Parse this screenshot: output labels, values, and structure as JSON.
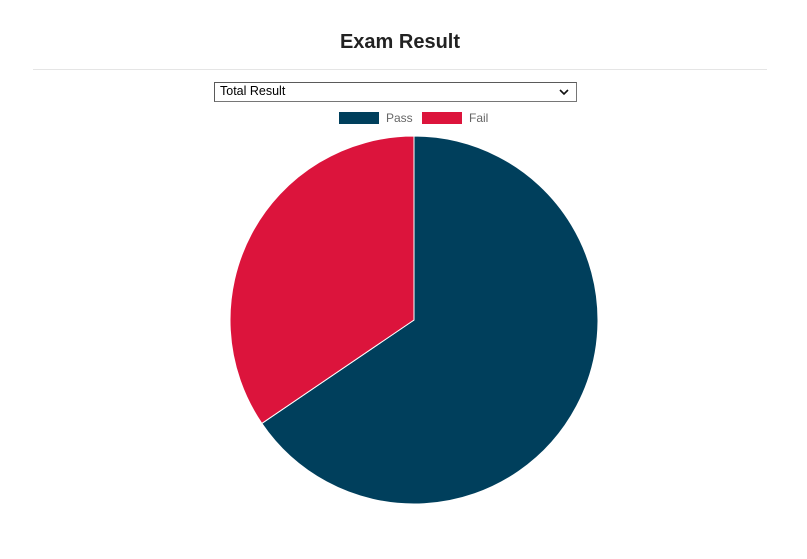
{
  "header": {
    "title": "Exam Result"
  },
  "filter": {
    "selected": "Total Result",
    "icon": "chevron-down-icon"
  },
  "colors": {
    "pass": "#003f5c",
    "fail": "#dc143c"
  },
  "chart_data": {
    "type": "pie",
    "categories": [
      "Pass",
      "Fail"
    ],
    "values": [
      65.5,
      34.5
    ],
    "colors": [
      "#003f5c",
      "#dc143c"
    ],
    "legend": "top",
    "title": ""
  }
}
